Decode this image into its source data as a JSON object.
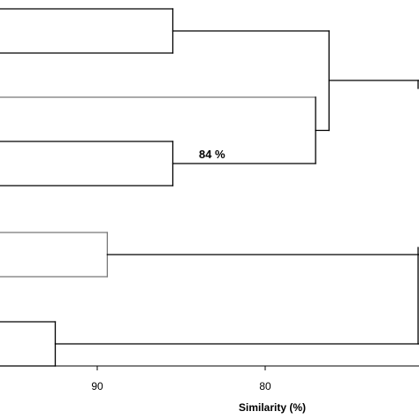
{
  "chart_data": {
    "type": "dendrogram",
    "xlabel": "Similarity (%)",
    "x_ticks": [
      {
        "value": 90,
        "label": "90"
      },
      {
        "value": 80,
        "label": "80"
      }
    ],
    "node_label": "84 %",
    "clusters": [
      {
        "name": "pair-1",
        "similarity": 85.5,
        "children": [
          10,
          60
        ],
        "color": "#000000"
      },
      {
        "name": "pair-2",
        "similarity": 89.4,
        "children": [
          263,
          313
        ],
        "color": "#777777"
      },
      {
        "name": "pair-3",
        "similarity": 85.5,
        "children": [
          160,
          210
        ],
        "color": "#000000"
      },
      {
        "name": "pair-4",
        "similarity": 92.5,
        "children": [
          364,
          414
        ],
        "color": "#000000"
      },
      {
        "name": "join-3-grey",
        "similarity": 77.0,
        "children": [
          110,
          185
        ],
        "color": "#000000",
        "upper_color": "#777777"
      },
      {
        "name": "join-1-a",
        "similarity": 76.2,
        "children": [
          35,
          147.5
        ],
        "color": "#000000"
      }
    ],
    "open_branches": [
      {
        "name": "to-root-top",
        "from_similarity": 76.2,
        "y": 91,
        "color": "#000000"
      },
      {
        "name": "to-root-pair-2",
        "from_similarity": 89.4,
        "y": 288,
        "color": "#000000"
      },
      {
        "name": "to-root-pair-4",
        "from_similarity": 92.5,
        "y": 389,
        "color": "#000000"
      }
    ]
  }
}
